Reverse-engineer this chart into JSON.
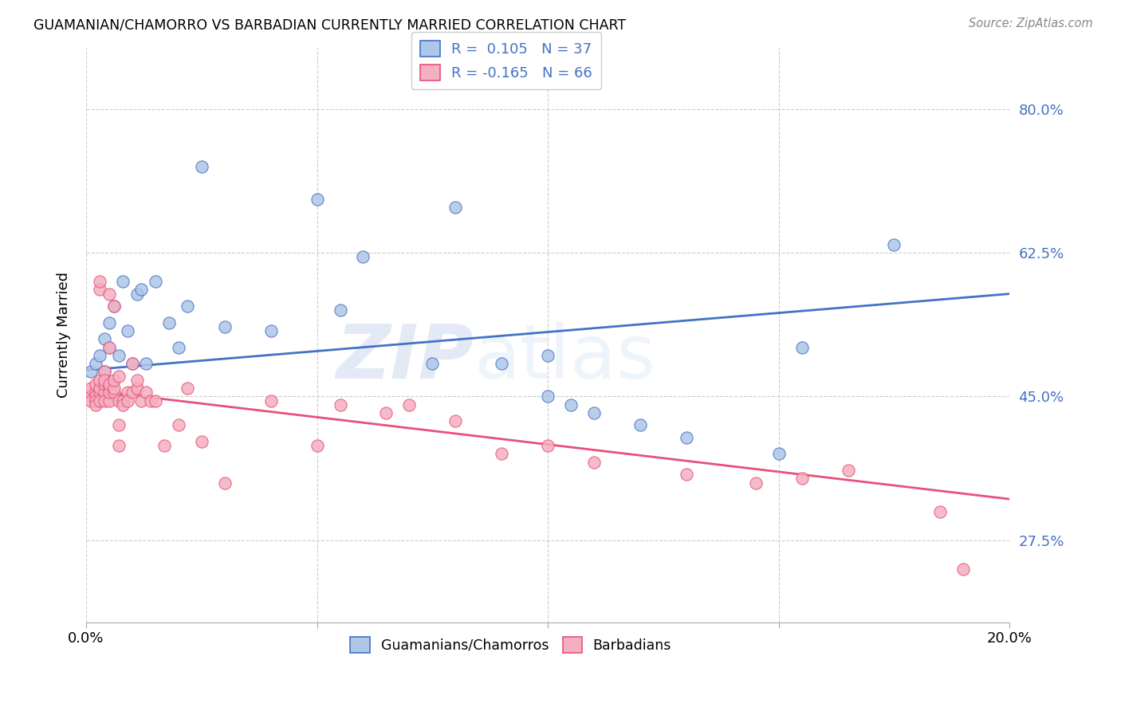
{
  "title": "GUAMANIAN/CHAMORRO VS BARBADIAN CURRENTLY MARRIED CORRELATION CHART",
  "source": "Source: ZipAtlas.com",
  "ylabel": "Currently Married",
  "ytick_labels": [
    "80.0%",
    "62.5%",
    "45.0%",
    "27.5%"
  ],
  "ytick_values": [
    0.8,
    0.625,
    0.45,
    0.275
  ],
  "xlim": [
    0.0,
    0.2
  ],
  "ylim": [
    0.175,
    0.875
  ],
  "blue_R": 0.105,
  "blue_N": 37,
  "pink_R": -0.165,
  "pink_N": 66,
  "blue_color": "#aec6e8",
  "pink_color": "#f4afc0",
  "blue_line_color": "#4472C4",
  "pink_line_color": "#E8517A",
  "legend_label_blue": "Guamanians/Chamorros",
  "legend_label_pink": "Barbadians",
  "watermark_zip": "ZIP",
  "watermark_atlas": "atlas",
  "blue_scatter_x": [
    0.001,
    0.002,
    0.003,
    0.004,
    0.004,
    0.005,
    0.005,
    0.006,
    0.007,
    0.008,
    0.009,
    0.01,
    0.011,
    0.012,
    0.013,
    0.015,
    0.018,
    0.02,
    0.022,
    0.025,
    0.03,
    0.04,
    0.05,
    0.055,
    0.06,
    0.075,
    0.08,
    0.09,
    0.1,
    0.1,
    0.105,
    0.11,
    0.12,
    0.13,
    0.15,
    0.155,
    0.175
  ],
  "blue_scatter_y": [
    0.48,
    0.49,
    0.5,
    0.48,
    0.52,
    0.51,
    0.54,
    0.56,
    0.5,
    0.59,
    0.53,
    0.49,
    0.575,
    0.58,
    0.49,
    0.59,
    0.54,
    0.51,
    0.56,
    0.73,
    0.535,
    0.53,
    0.69,
    0.555,
    0.62,
    0.49,
    0.68,
    0.49,
    0.5,
    0.45,
    0.44,
    0.43,
    0.415,
    0.4,
    0.38,
    0.51,
    0.635
  ],
  "pink_scatter_x": [
    0.001,
    0.001,
    0.001,
    0.001,
    0.002,
    0.002,
    0.002,
    0.002,
    0.002,
    0.003,
    0.003,
    0.003,
    0.003,
    0.003,
    0.003,
    0.004,
    0.004,
    0.004,
    0.004,
    0.004,
    0.005,
    0.005,
    0.005,
    0.005,
    0.005,
    0.005,
    0.006,
    0.006,
    0.006,
    0.006,
    0.007,
    0.007,
    0.007,
    0.007,
    0.008,
    0.008,
    0.009,
    0.009,
    0.01,
    0.01,
    0.011,
    0.011,
    0.012,
    0.013,
    0.014,
    0.015,
    0.017,
    0.02,
    0.022,
    0.025,
    0.03,
    0.04,
    0.05,
    0.055,
    0.065,
    0.07,
    0.08,
    0.09,
    0.1,
    0.11,
    0.13,
    0.145,
    0.155,
    0.165,
    0.185,
    0.19
  ],
  "pink_scatter_y": [
    0.455,
    0.45,
    0.46,
    0.445,
    0.455,
    0.45,
    0.465,
    0.445,
    0.44,
    0.455,
    0.46,
    0.47,
    0.58,
    0.59,
    0.445,
    0.455,
    0.465,
    0.48,
    0.445,
    0.47,
    0.445,
    0.46,
    0.455,
    0.465,
    0.51,
    0.575,
    0.455,
    0.46,
    0.47,
    0.56,
    0.445,
    0.475,
    0.39,
    0.415,
    0.445,
    0.44,
    0.455,
    0.445,
    0.455,
    0.49,
    0.46,
    0.47,
    0.445,
    0.455,
    0.445,
    0.445,
    0.39,
    0.415,
    0.46,
    0.395,
    0.345,
    0.445,
    0.39,
    0.44,
    0.43,
    0.44,
    0.42,
    0.38,
    0.39,
    0.37,
    0.355,
    0.345,
    0.35,
    0.36,
    0.31,
    0.24
  ],
  "blue_trend_x0": 0.0,
  "blue_trend_y0": 0.482,
  "blue_trend_x1": 0.2,
  "blue_trend_y1": 0.575,
  "pink_trend_x0": 0.0,
  "pink_trend_y0": 0.458,
  "pink_trend_x1": 0.2,
  "pink_trend_y1": 0.325
}
